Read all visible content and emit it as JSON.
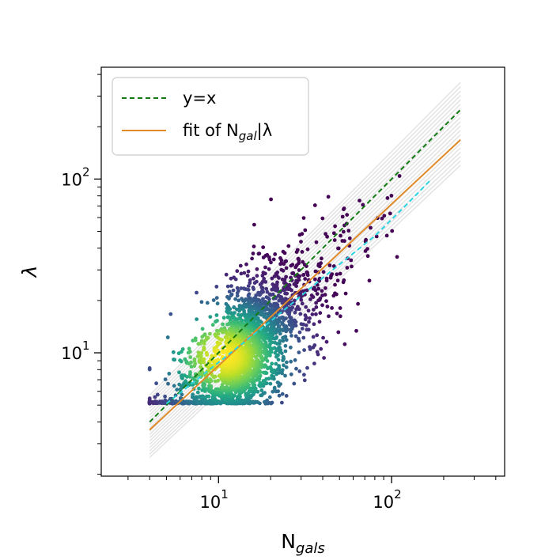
{
  "chart_data": {
    "type": "scatter",
    "xlabel": "N",
    "xlabel_sub": "gals",
    "ylabel": "λ",
    "xscale": "log",
    "yscale": "log",
    "xlim": [
      2.1,
      450
    ],
    "ylim": [
      1.95,
      440
    ],
    "grid": false,
    "legend_placement": "top-left",
    "x_ticks": [
      {
        "base": "10",
        "exp": "1",
        "value": 10
      },
      {
        "base": "10",
        "exp": "2",
        "value": 100
      }
    ],
    "y_ticks": [
      {
        "base": "10",
        "exp": "1",
        "value": 10
      },
      {
        "base": "10",
        "exp": "2",
        "value": 100
      }
    ],
    "series": [
      {
        "name": "y=x",
        "kind": "line",
        "style": "dashed",
        "color": "#137a13",
        "x": [
          4,
          250
        ],
        "y": [
          4,
          250
        ]
      },
      {
        "name": "fit of N",
        "name_sub": "gal",
        "name_suffix": "|λ",
        "kind": "line",
        "style": "solid",
        "color": "#e08a2a",
        "x": [
          4,
          250
        ],
        "y": [
          3.6,
          168
        ]
      },
      {
        "kind": "line",
        "style": "dashed",
        "color": "#2ad4e0",
        "x": [
          5,
          10,
          20,
          40,
          80,
          120,
          170
        ],
        "y": [
          5.1,
          8.8,
          15.2,
          27,
          47,
          70,
          100
        ]
      },
      {
        "kind": "band",
        "color": "#e3e3e3",
        "x": [
          4,
          250
        ],
        "y_low": [
          2.5,
          120
        ],
        "y_high": [
          5.7,
          360
        ],
        "n_lines": 20
      },
      {
        "kind": "density-scatter",
        "colormap": "viridis",
        "center": [
          11,
          9.5
        ],
        "x_range": [
          4,
          260
        ],
        "y_floor": 5.1,
        "y_range": [
          5.1,
          200
        ],
        "n_points": 2600,
        "approx_relation": "λ ≈ 0.87·N^0.92"
      }
    ]
  }
}
